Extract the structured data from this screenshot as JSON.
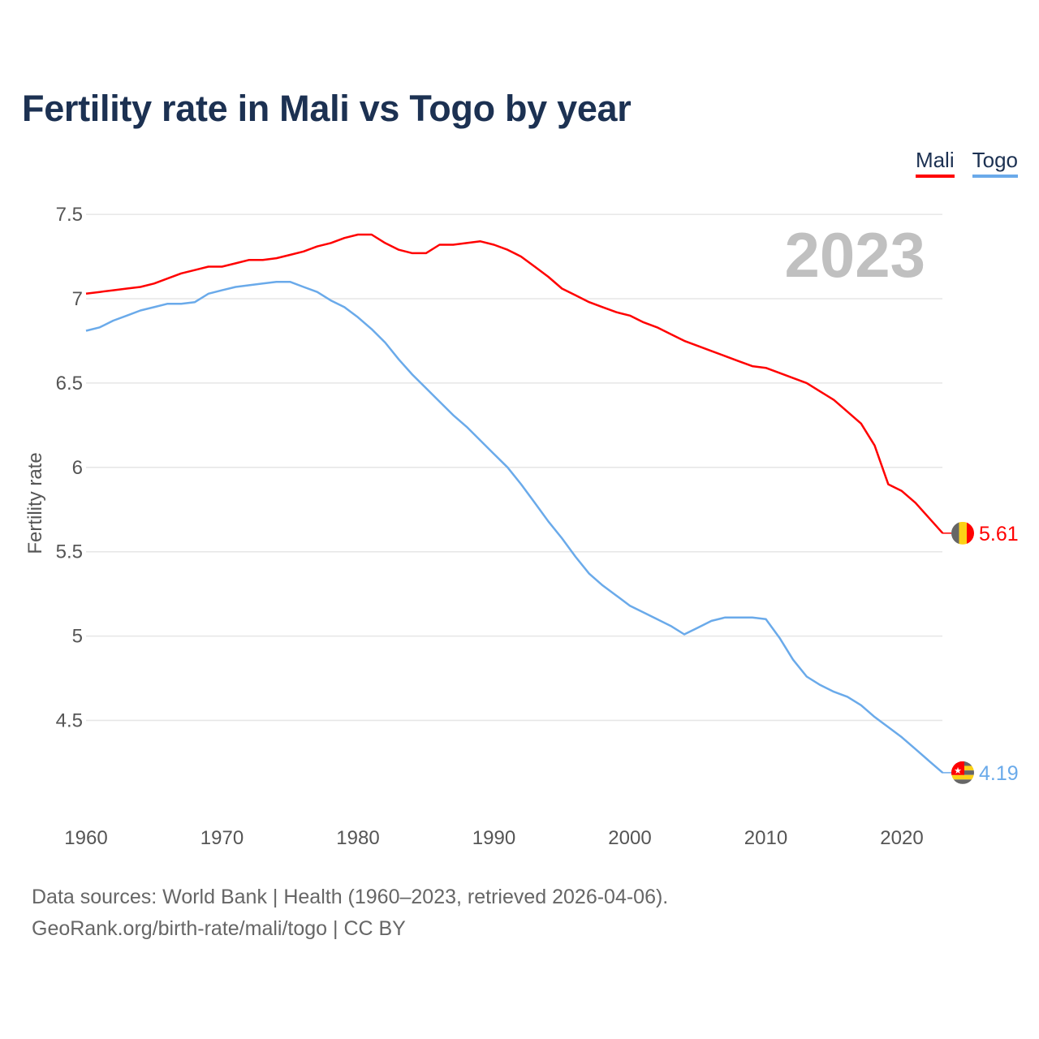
{
  "title": "Fertility rate in Mali vs Togo by year",
  "legend": [
    {
      "name": "Mali",
      "color": "#ff0000"
    },
    {
      "name": "Togo",
      "color": "#6aaaea"
    }
  ],
  "year_label": "2023",
  "footer": {
    "line1": "Data sources: World Bank | Health (1960–2023, retrieved 2026-04-06).",
    "line2": "GeoRank.org/birth-rate/mali/togo | CC BY"
  },
  "chart_data": {
    "type": "line",
    "title": "Fertility rate in Mali vs Togo by year",
    "xlabel": "",
    "ylabel": "Fertility rate",
    "xlim": [
      1960,
      2023
    ],
    "ylim": [
      4.0,
      7.6
    ],
    "grid": true,
    "legend_position": "top-right",
    "x_ticks": [
      "1960",
      "1970",
      "1980",
      "1990",
      "2000",
      "2010",
      "2020"
    ],
    "y_ticks": [
      "7.5",
      "7",
      "6.5",
      "6",
      "5.5",
      "5",
      "4.5"
    ],
    "x": [
      1960,
      1961,
      1962,
      1963,
      1964,
      1965,
      1966,
      1967,
      1968,
      1969,
      1970,
      1971,
      1972,
      1973,
      1974,
      1975,
      1976,
      1977,
      1978,
      1979,
      1980,
      1981,
      1982,
      1983,
      1984,
      1985,
      1986,
      1987,
      1988,
      1989,
      1990,
      1991,
      1992,
      1993,
      1994,
      1995,
      1996,
      1997,
      1998,
      1999,
      2000,
      2001,
      2002,
      2003,
      2004,
      2005,
      2006,
      2007,
      2008,
      2009,
      2010,
      2011,
      2012,
      2013,
      2014,
      2015,
      2016,
      2017,
      2018,
      2019,
      2020,
      2021,
      2022,
      2023
    ],
    "series": [
      {
        "name": "Mali",
        "color": "#ff0000",
        "end_label": "5.61",
        "values": [
          7.03,
          7.04,
          7.05,
          7.06,
          7.07,
          7.09,
          7.12,
          7.15,
          7.17,
          7.19,
          7.19,
          7.21,
          7.23,
          7.23,
          7.24,
          7.26,
          7.28,
          7.31,
          7.33,
          7.36,
          7.38,
          7.38,
          7.33,
          7.29,
          7.27,
          7.27,
          7.32,
          7.32,
          7.33,
          7.34,
          7.32,
          7.29,
          7.25,
          7.19,
          7.13,
          7.06,
          7.02,
          6.98,
          6.95,
          6.92,
          6.9,
          6.86,
          6.83,
          6.79,
          6.75,
          6.72,
          6.69,
          6.66,
          6.63,
          6.6,
          6.59,
          6.56,
          6.53,
          6.5,
          6.45,
          6.4,
          6.33,
          6.26,
          6.13,
          5.9,
          5.86,
          5.79,
          5.7,
          5.61
        ]
      },
      {
        "name": "Togo",
        "color": "#6aaaea",
        "end_label": "4.19",
        "values": [
          6.81,
          6.83,
          6.87,
          6.9,
          6.93,
          6.95,
          6.97,
          6.97,
          6.98,
          7.03,
          7.05,
          7.07,
          7.08,
          7.09,
          7.1,
          7.1,
          7.07,
          7.04,
          6.99,
          6.95,
          6.89,
          6.82,
          6.74,
          6.64,
          6.55,
          6.47,
          6.39,
          6.31,
          6.24,
          6.16,
          6.08,
          6.0,
          5.9,
          5.79,
          5.68,
          5.58,
          5.47,
          5.37,
          5.3,
          5.24,
          5.18,
          5.14,
          5.1,
          5.06,
          5.01,
          5.05,
          5.09,
          5.11,
          5.11,
          5.11,
          5.1,
          4.99,
          4.86,
          4.76,
          4.71,
          4.67,
          4.64,
          4.59,
          4.52,
          4.46,
          4.4,
          4.33,
          4.26,
          4.19
        ]
      }
    ]
  }
}
